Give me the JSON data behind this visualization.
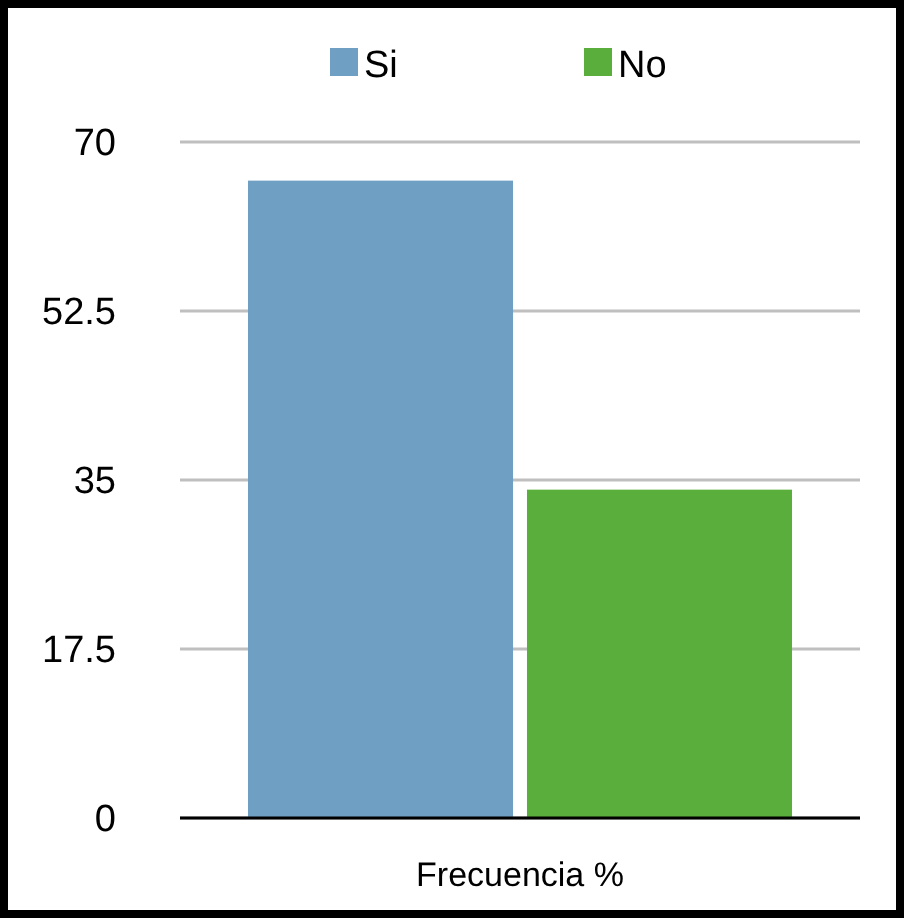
{
  "chart_data": {
    "type": "bar",
    "categories": [
      "Frecuencia %"
    ],
    "series": [
      {
        "name": "Si",
        "color": "#6f9fc2",
        "values": [
          66
        ]
      },
      {
        "name": "No",
        "color": "#5aae3c",
        "values": [
          34
        ]
      }
    ],
    "ylim": [
      0,
      70
    ],
    "yticks": [
      0,
      17.5,
      35,
      52.5,
      70
    ],
    "grid": "y",
    "legend": "top"
  }
}
